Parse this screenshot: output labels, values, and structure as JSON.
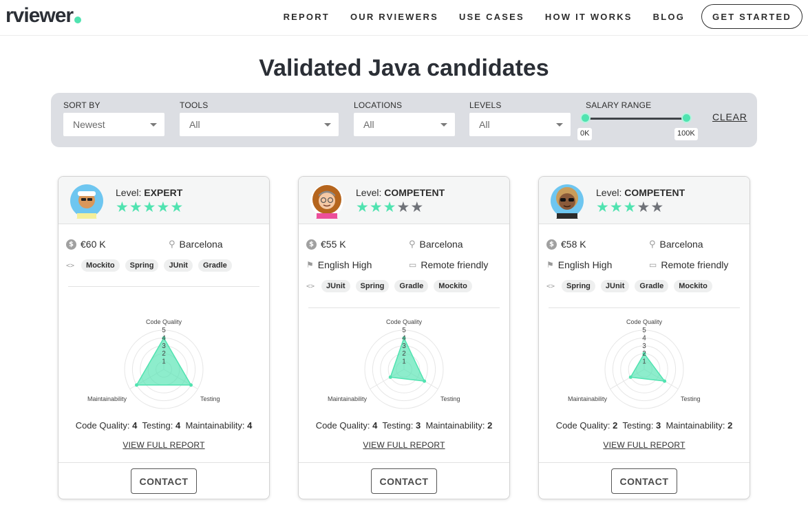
{
  "header": {
    "logo": "rviewer",
    "nav": [
      "REPORT",
      "OUR RVIEWERS",
      "USE CASES",
      "HOW IT WORKS",
      "BLOG"
    ],
    "cta": "GET STARTED"
  },
  "page_title": "Validated Java candidates",
  "filters": {
    "sort_by": {
      "label": "SORT BY",
      "value": "Newest"
    },
    "tools": {
      "label": "TOOLS",
      "value": "All"
    },
    "locations": {
      "label": "LOCATIONS",
      "value": "All"
    },
    "levels": {
      "label": "LEVELS",
      "value": "All"
    },
    "salary": {
      "label": "SALARY RANGE",
      "min": "0K",
      "max": "100K"
    },
    "clear": "CLEAR"
  },
  "colors": {
    "accent": "#50e3b0",
    "star_off": "#6f7278",
    "panel": "#dcdee3"
  },
  "radar_labels": {
    "top": "Code Quality",
    "right": "Testing",
    "left": "Maintainability",
    "ticks": [
      "1",
      "2",
      "3",
      "4",
      "5"
    ]
  },
  "cards": [
    {
      "level_prefix": "Level: ",
      "level": "EXPERT",
      "stars": 5,
      "salary": "€60 K",
      "location": "Barcelona",
      "language": "",
      "remote": "",
      "tags": [
        "Mockito",
        "Spring",
        "JUnit",
        "Gradle"
      ],
      "scores": {
        "code_quality": 4,
        "testing": 4,
        "maintainability": 4
      },
      "score_labels": {
        "code_quality": "Code Quality:",
        "testing": "Testing:",
        "maintainability": "Maintainability:"
      },
      "report_link": "VIEW FULL REPORT",
      "contact": "CONTACT"
    },
    {
      "level_prefix": "Level: ",
      "level": "COMPETENT",
      "stars": 3,
      "salary": "€55 K",
      "location": "Barcelona",
      "language": "English High",
      "remote": "Remote friendly",
      "tags": [
        "JUnit",
        "Spring",
        "Gradle",
        "Mockito"
      ],
      "scores": {
        "code_quality": 4,
        "testing": 3,
        "maintainability": 2
      },
      "score_labels": {
        "code_quality": "Code Quality:",
        "testing": "Testing:",
        "maintainability": "Maintainability:"
      },
      "report_link": "VIEW FULL REPORT",
      "contact": "CONTACT"
    },
    {
      "level_prefix": "Level: ",
      "level": "COMPETENT",
      "stars": 3,
      "salary": "€58 K",
      "location": "Barcelona",
      "language": "English High",
      "remote": "Remote friendly",
      "tags": [
        "Spring",
        "JUnit",
        "Gradle",
        "Mockito"
      ],
      "scores": {
        "code_quality": 2,
        "testing": 3,
        "maintainability": 2
      },
      "score_labels": {
        "code_quality": "Code Quality:",
        "testing": "Testing:",
        "maintainability": "Maintainability:"
      },
      "report_link": "VIEW FULL REPORT",
      "contact": "CONTACT"
    }
  ]
}
